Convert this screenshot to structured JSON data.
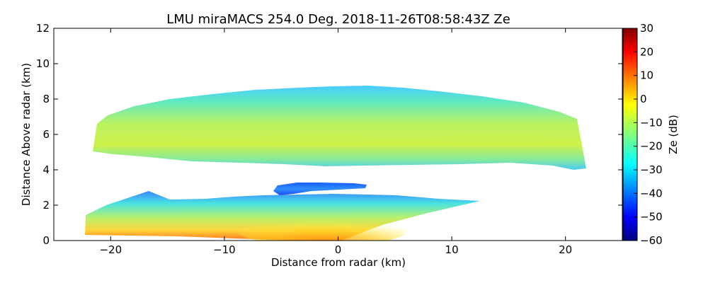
{
  "chart_data": {
    "type": "heatmap",
    "title": "LMU miraMACS 254.0 Deg. 2018-11-26T08:58:43Z  Ze",
    "xlabel": "Distance from radar (km)",
    "ylabel": "Distance Above radar  (km)",
    "xlim": [
      -25,
      25
    ],
    "ylim": [
      0,
      12
    ],
    "xticks": [
      -20,
      -10,
      0,
      10,
      20
    ],
    "xtick_labels": [
      "−20",
      "−10",
      "0",
      "10",
      "20"
    ],
    "yticks": [
      0,
      2,
      4,
      6,
      8,
      10,
      12
    ],
    "ytick_labels": [
      "0",
      "2",
      "4",
      "6",
      "8",
      "10",
      "12"
    ],
    "colorbar": {
      "label": "Ze (dB)",
      "range": [
        -60,
        30
      ],
      "ticks": [
        30,
        20,
        10,
        0,
        -10,
        -20,
        -30,
        -40,
        -50,
        -60
      ],
      "tick_labels": [
        "30",
        "20",
        "10",
        "0",
        "−10",
        "−20",
        "−30",
        "−40",
        "−50",
        "−60"
      ],
      "colormap": "jet",
      "colors": [
        "#00007f",
        "#0000ff",
        "#007fff",
        "#00ffff",
        "#7fff7f",
        "#ffff00",
        "#ff7f00",
        "#ff0000",
        "#7f0000"
      ]
    },
    "regions": [
      {
        "name": "upper-cloud-layer",
        "x_range": [
          -22,
          22
        ],
        "height_range_km": [
          4.2,
          8.8
        ],
        "ze_range_db": [
          -30,
          -8
        ],
        "core_ze_db": -10
      },
      {
        "name": "mid-level-band",
        "x_range": [
          -5.5,
          2.8
        ],
        "height_range_km": [
          2.5,
          3.3
        ],
        "ze_range_db": [
          -45,
          -30
        ],
        "core_ze_db": -38
      },
      {
        "name": "lower-precipitation",
        "x_range": [
          -22,
          12.5
        ],
        "height_range_km": [
          0,
          2.8
        ],
        "ze_range_db": [
          -40,
          10
        ],
        "core_ze_db": 5
      }
    ]
  }
}
